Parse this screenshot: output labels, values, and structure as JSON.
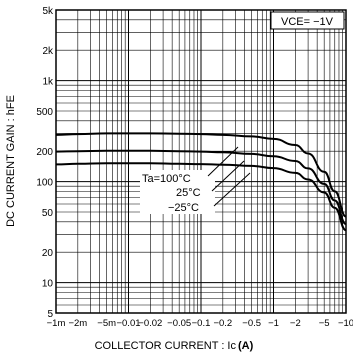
{
  "chart_data": {
    "type": "line",
    "ylabel": "DC CURRENT GAIN : hFE",
    "xlabel_text": "COLLECTOR CURRENT : Ic",
    "xlabel_unit": "(A)",
    "condition_label": "VCE= −1V",
    "x_scale": "log",
    "y_scale": "log",
    "xlim": [
      -0.001,
      -10
    ],
    "ylim": [
      5,
      5000
    ],
    "grid": true,
    "x_tick_values": [
      -0.001,
      -0.002,
      -0.005,
      -0.01,
      -0.02,
      -0.05,
      -0.1,
      -0.2,
      -0.5,
      -1,
      -2,
      -5,
      -10
    ],
    "x_tick_labels": [
      "−1m",
      "−2m",
      "−5m",
      "−0.01",
      "−0.02",
      "−0.05",
      "−0.1",
      "−0.2",
      "−0.5",
      "−1",
      "−2",
      "−5",
      "−10"
    ],
    "y_tick_values": [
      5,
      10,
      20,
      50,
      100,
      200,
      500,
      1000,
      2000,
      5000
    ],
    "y_tick_labels": [
      "5",
      "10",
      "20",
      "50",
      "100",
      "200",
      "500",
      "1k",
      "2k",
      "5k"
    ],
    "series": [
      {
        "name": "Ta=100°C",
        "x": [
          -0.001,
          -0.002,
          -0.005,
          -0.01,
          -0.02,
          -0.05,
          -0.1,
          -0.2,
          -0.5,
          -1,
          -2,
          -3,
          -5,
          -7,
          -10
        ],
        "y": [
          290,
          295,
          300,
          300,
          300,
          298,
          295,
          290,
          280,
          265,
          230,
          190,
          125,
          80,
          45
        ]
      },
      {
        "name": "25°C",
        "x": [
          -0.001,
          -0.002,
          -0.005,
          -0.01,
          -0.02,
          -0.05,
          -0.1,
          -0.2,
          -0.5,
          -1,
          -2,
          -3,
          -5,
          -7,
          -10
        ],
        "y": [
          198,
          200,
          202,
          202,
          202,
          200,
          198,
          195,
          188,
          178,
          160,
          135,
          95,
          65,
          38
        ]
      },
      {
        "name": "−25°C",
        "x": [
          -0.001,
          -0.002,
          -0.005,
          -0.01,
          -0.02,
          -0.05,
          -0.1,
          -0.2,
          -0.5,
          -1,
          -2,
          -3,
          -5,
          -7,
          -10
        ],
        "y": [
          148,
          150,
          152,
          152,
          152,
          150,
          149,
          147,
          143,
          136,
          122,
          105,
          78,
          55,
          33
        ]
      }
    ]
  }
}
